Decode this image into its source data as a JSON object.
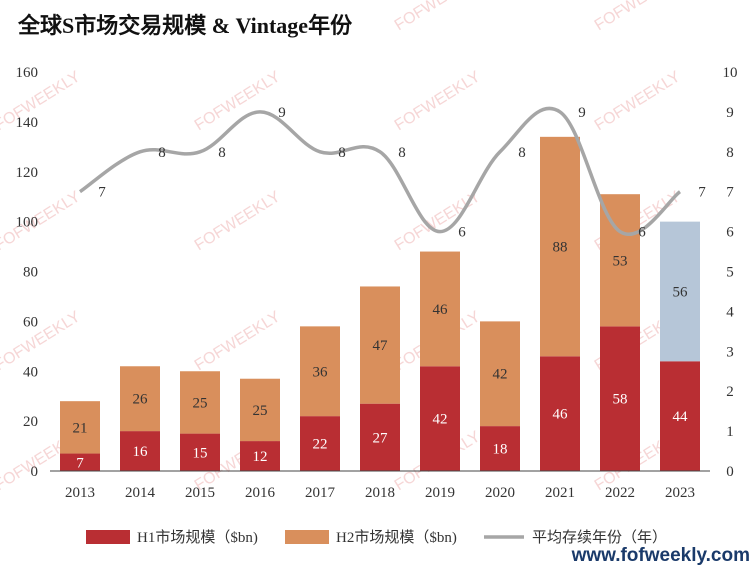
{
  "title": "全球S市场交易规模 & Vintage年份",
  "footer_url": "www.fofweekly.com",
  "watermark": "FOFWEEKLY",
  "chart_data": {
    "type": "bar",
    "stacked": true,
    "categories": [
      "2013",
      "2014",
      "2015",
      "2016",
      "2017",
      "2018",
      "2019",
      "2020",
      "2021",
      "2022",
      "2023"
    ],
    "series": [
      {
        "name": "H1市场规模（$bn)",
        "values": [
          7,
          16,
          15,
          12,
          22,
          27,
          42,
          18,
          46,
          58,
          44
        ],
        "color": "#b92e33",
        "label_color": "#ffffff"
      },
      {
        "name": "H2市场规模（$bn)",
        "values": [
          21,
          26,
          25,
          25,
          36,
          47,
          46,
          42,
          88,
          53,
          56
        ],
        "color": "#d98f5c",
        "label_color": "#333333",
        "point_colors": [
          "#d98f5c",
          "#d98f5c",
          "#d98f5c",
          "#d98f5c",
          "#d98f5c",
          "#d98f5c",
          "#d98f5c",
          "#d98f5c",
          "#d98f5c",
          "#d98f5c",
          "#b6c6d8"
        ]
      }
    ],
    "line_series": {
      "name": "平均存续年份（年）",
      "values": [
        7,
        8,
        8,
        9,
        8,
        8,
        6,
        8,
        9,
        6,
        7
      ],
      "color": "#a6a6a6",
      "axis": "right"
    },
    "ylim_left": [
      0,
      160
    ],
    "yticks_left": [
      "0",
      "20",
      "40",
      "60",
      "80",
      "100",
      "120",
      "140",
      "160"
    ],
    "ylim_right": [
      0,
      10
    ],
    "yticks_right": [
      "0",
      "1",
      "2",
      "3",
      "4",
      "5",
      "6",
      "7",
      "8",
      "9",
      "10"
    ],
    "grid": false,
    "legend_position": "bottom"
  }
}
